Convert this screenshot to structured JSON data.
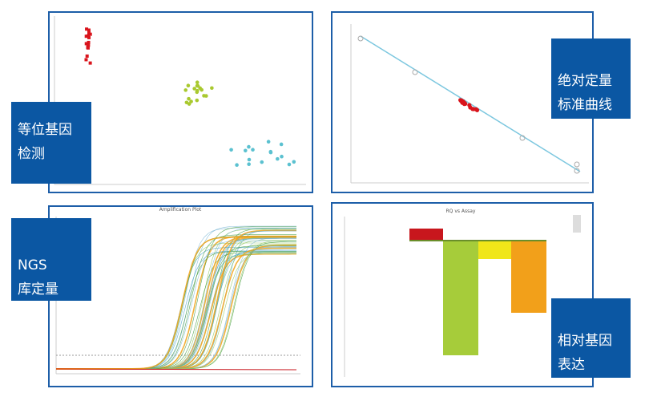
{
  "panels": [
    {
      "label": [
        "等位基因",
        "检测"
      ]
    },
    {
      "label": [
        "绝对定量",
        "标准曲线"
      ]
    },
    {
      "label": [
        "NGS",
        "库定量"
      ]
    },
    {
      "label": [
        "相对基因",
        "表达"
      ]
    }
  ],
  "amplification": {
    "title": "Amplification Plot"
  },
  "rq": {
    "title": "RQ vs Assay"
  }
}
